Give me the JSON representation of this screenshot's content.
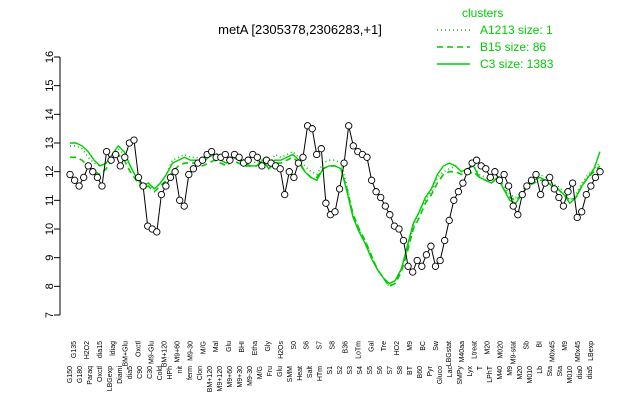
{
  "chart_data": {
    "type": "line",
    "title": "metA [2305378,2306283,+1]",
    "ylim": [
      7,
      16
    ],
    "yticks": [
      "7",
      "8",
      "9",
      "10",
      "11",
      "12",
      "13",
      "14",
      "15",
      "16"
    ],
    "grid": false,
    "legend_placement": "top-right",
    "legend_title": "clusters",
    "color": "#00cc00",
    "series": [
      {
        "name": "A1213 size: 1",
        "style": "dotted",
        "values": [
          12.9,
          12.9,
          12.8,
          12.5,
          12.3,
          12.2,
          12.3,
          12.6,
          12.8,
          12.6,
          12.2,
          11.8,
          11.5,
          11.6,
          11.4,
          11.6,
          11.9,
          12.4,
          12.5,
          12.6,
          12.5,
          12.5,
          12.4,
          12.6,
          12.7,
          12.5,
          12.4,
          12.6,
          12.5,
          12.4,
          12.4,
          12.3,
          12.5,
          12.2,
          12.6,
          12.5,
          12.6,
          12.7,
          12.5,
          12.2,
          12.0,
          11.9,
          12.3,
          12.4,
          12.4,
          12.3,
          11.5,
          10.5,
          10.0,
          9.6,
          9.1,
          8.6,
          8.3,
          8.0,
          8.2,
          8.6,
          9.3,
          10.1,
          10.6,
          11.0,
          11.3,
          11.8,
          12.0,
          12.1,
          12.2,
          12.0,
          12.1,
          12.2,
          11.9,
          11.8,
          11.7,
          11.9,
          11.5,
          11.2,
          11.1,
          11.3,
          11.6,
          11.8,
          11.9,
          11.8,
          11.6,
          11.5,
          11.3,
          11.0,
          11.2,
          11.6,
          11.9,
          12.1,
          12.3
        ]
      },
      {
        "name": "B15 size: 86",
        "style": "dashed",
        "values": [
          12.5,
          12.5,
          12.4,
          12.2,
          12.0,
          11.9,
          12.1,
          12.4,
          12.6,
          12.4,
          12.0,
          11.7,
          11.4,
          11.5,
          11.3,
          11.5,
          11.7,
          12.0,
          12.2,
          12.3,
          12.3,
          12.3,
          12.2,
          12.3,
          12.4,
          12.3,
          12.2,
          12.4,
          12.3,
          12.2,
          12.2,
          12.2,
          12.4,
          12.1,
          12.3,
          12.3,
          12.4,
          12.5,
          12.3,
          12.0,
          11.8,
          11.8,
          12.1,
          12.2,
          12.2,
          12.1,
          11.4,
          10.5,
          10.0,
          9.6,
          9.1,
          8.6,
          8.3,
          8.0,
          8.1,
          8.5,
          9.2,
          10.0,
          10.4,
          10.9,
          11.2,
          11.6,
          11.9,
          12.0,
          12.0,
          11.9,
          11.9,
          12.0,
          11.8,
          11.7,
          11.6,
          11.8,
          11.4,
          11.1,
          11.0,
          11.2,
          11.5,
          11.6,
          11.7,
          11.7,
          11.5,
          11.4,
          11.2,
          11.0,
          11.1,
          11.5,
          11.8,
          12.0,
          12.2
        ]
      },
      {
        "name": "C3 size: 1383",
        "style": "solid",
        "values": [
          13.0,
          13.0,
          12.9,
          12.7,
          12.4,
          12.2,
          12.3,
          12.6,
          12.9,
          12.7,
          12.2,
          11.8,
          11.5,
          11.6,
          11.4,
          11.6,
          11.9,
          12.3,
          12.4,
          12.5,
          12.4,
          12.4,
          12.3,
          12.5,
          12.6,
          12.4,
          12.3,
          12.5,
          12.4,
          12.3,
          12.2,
          12.2,
          12.4,
          12.1,
          12.4,
          12.4,
          12.5,
          12.6,
          12.4,
          12.0,
          11.8,
          11.7,
          12.1,
          12.2,
          12.2,
          12.1,
          11.3,
          10.4,
          9.9,
          9.5,
          9.0,
          8.6,
          8.3,
          8.1,
          8.2,
          8.6,
          9.4,
          10.2,
          10.6,
          11.1,
          11.4,
          11.9,
          12.2,
          12.3,
          12.2,
          12.0,
          12.1,
          12.2,
          11.8,
          11.7,
          11.6,
          11.8,
          11.4,
          11.0,
          10.9,
          11.2,
          11.5,
          11.7,
          11.8,
          11.7,
          11.5,
          11.4,
          11.2,
          10.9,
          11.1,
          11.5,
          11.8,
          12.1,
          12.7
        ]
      }
    ],
    "points": [
      [
        0,
        11.9
      ],
      [
        1,
        11.7
      ],
      [
        2,
        11.5
      ],
      [
        3,
        11.8
      ],
      [
        4,
        12.2
      ],
      [
        5,
        12.0
      ],
      [
        6,
        11.8
      ],
      [
        7,
        11.5
      ],
      [
        8,
        12.7
      ],
      [
        9,
        12.4
      ],
      [
        10,
        12.6
      ],
      [
        11,
        12.2
      ],
      [
        12,
        12.5
      ],
      [
        13,
        13.0
      ],
      [
        14,
        13.1
      ],
      [
        15,
        11.8
      ],
      [
        16,
        11.5
      ],
      [
        17,
        10.1
      ],
      [
        18,
        10.0
      ],
      [
        19,
        9.9
      ],
      [
        20,
        11.2
      ],
      [
        21,
        11.5
      ],
      [
        22,
        11.8
      ],
      [
        23,
        12.0
      ],
      [
        24,
        11.0
      ],
      [
        25,
        10.8
      ],
      [
        26,
        11.9
      ],
      [
        27,
        12.1
      ],
      [
        28,
        12.3
      ],
      [
        29,
        12.4
      ],
      [
        30,
        12.6
      ],
      [
        31,
        12.7
      ],
      [
        32,
        12.5
      ],
      [
        33,
        12.5
      ],
      [
        34,
        12.6
      ],
      [
        35,
        12.4
      ],
      [
        36,
        12.6
      ],
      [
        37,
        12.5
      ],
      [
        38,
        12.3
      ],
      [
        39,
        12.4
      ],
      [
        40,
        12.6
      ],
      [
        41,
        12.5
      ],
      [
        42,
        12.2
      ],
      [
        43,
        12.4
      ],
      [
        44,
        12.3
      ],
      [
        45,
        12.2
      ],
      [
        46,
        12.1
      ],
      [
        47,
        11.2
      ],
      [
        48,
        12.0
      ],
      [
        49,
        11.8
      ],
      [
        50,
        12.3
      ],
      [
        51,
        12.5
      ],
      [
        52,
        13.6
      ],
      [
        53,
        13.5
      ],
      [
        54,
        12.6
      ],
      [
        55,
        12.8
      ],
      [
        56,
        10.9
      ],
      [
        57,
        10.5
      ],
      [
        58,
        10.6
      ],
      [
        59,
        11.4
      ],
      [
        60,
        12.3
      ],
      [
        61,
        13.6
      ],
      [
        62,
        12.9
      ],
      [
        63,
        12.7
      ],
      [
        64,
        12.6
      ],
      [
        65,
        12.5
      ],
      [
        66,
        11.7
      ],
      [
        67,
        11.3
      ],
      [
        68,
        11.1
      ],
      [
        69,
        10.8
      ],
      [
        70,
        10.5
      ],
      [
        71,
        10.1
      ],
      [
        72,
        10.0
      ],
      [
        73,
        9.6
      ],
      [
        74,
        8.7
      ],
      [
        75,
        8.5
      ],
      [
        76,
        8.9
      ],
      [
        77,
        8.7
      ],
      [
        78,
        9.1
      ],
      [
        79,
        9.4
      ],
      [
        80,
        8.7
      ],
      [
        81,
        8.9
      ],
      [
        82,
        9.6
      ],
      [
        83,
        10.3
      ],
      [
        84,
        11.0
      ],
      [
        85,
        11.3
      ],
      [
        86,
        11.6
      ],
      [
        87,
        12.0
      ],
      [
        88,
        12.3
      ],
      [
        89,
        12.4
      ],
      [
        90,
        12.2
      ],
      [
        91,
        12.1
      ],
      [
        92,
        11.8
      ],
      [
        93,
        12.0
      ],
      [
        94,
        11.7
      ],
      [
        95,
        11.9
      ],
      [
        96,
        11.5
      ],
      [
        97,
        10.8
      ],
      [
        98,
        10.5
      ],
      [
        99,
        11.2
      ],
      [
        100,
        11.5
      ],
      [
        101,
        11.7
      ],
      [
        102,
        11.9
      ],
      [
        103,
        11.2
      ],
      [
        104,
        11.6
      ],
      [
        105,
        11.8
      ],
      [
        106,
        11.4
      ],
      [
        107,
        11.1
      ],
      [
        108,
        10.8
      ],
      [
        109,
        11.3
      ],
      [
        110,
        11.6
      ],
      [
        111,
        10.4
      ],
      [
        112,
        10.6
      ],
      [
        113,
        11.2
      ],
      [
        114,
        11.5
      ],
      [
        115,
        11.8
      ],
      [
        116,
        12.0
      ]
    ],
    "points_n": 117,
    "x_labels_row1": [
      "G150",
      "G180",
      "Paraq",
      "Oxctl",
      "LBGexp",
      "Diami",
      "dia5",
      "C90",
      "C30",
      "Cold",
      "HPh",
      "nit",
      "ferm",
      "Clon",
      "BM+120",
      "M9+120",
      "M9+60",
      "M9+30",
      "M9-30",
      "M/G",
      "Fru",
      "Glu",
      "SMM",
      "Heat",
      "Salt",
      "HTm",
      "S1",
      "S2",
      "S3",
      "S4",
      "S5",
      "S6",
      "S7",
      "S8",
      "BT",
      "B60",
      "Pyr",
      "Gluco",
      "Lac",
      "SMPy",
      "Lyx",
      "T",
      "LPhT",
      "M40",
      "M9",
      "M20",
      "M010",
      "Lb",
      "Sta",
      "Sta",
      "M010",
      "dia0",
      "dia5"
    ],
    "x_labels_row2": [
      "G135",
      "H2O2",
      "dia15",
      "ldiag",
      "BM+Glu",
      "Oxctl",
      "M9-Glu",
      "BM+120",
      "M9+60",
      "M9-30",
      "M/G",
      "Mal",
      "Glu",
      "BHI",
      "Etha",
      "Gly",
      "H2Os",
      "S0",
      "S6",
      "S7",
      "S8",
      "B36",
      "LoTm",
      "Gal",
      "Tre",
      "HO2",
      "M9",
      "BC",
      "Sw",
      "LBGstat",
      "M40aa",
      "Ltreat",
      "M20",
      "M020",
      "M9-stat",
      "Sb",
      "BI",
      "M0x45",
      "M9",
      "M0x45",
      "LBexp"
    ],
    "legend": {
      "title": "clusters"
    }
  }
}
